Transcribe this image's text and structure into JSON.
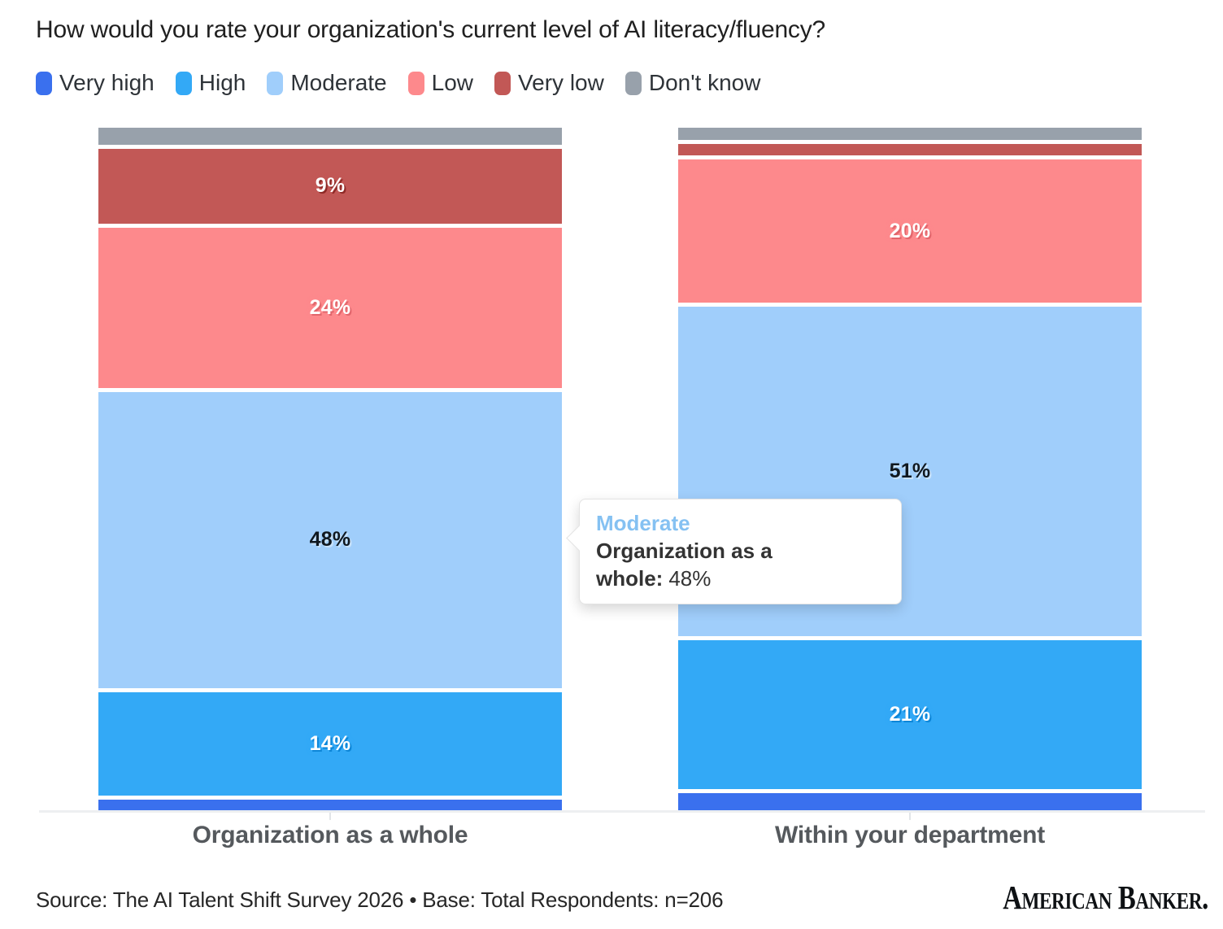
{
  "title": "How would you rate your organization's current level of AI literacy/fluency?",
  "chart_data": {
    "type": "bar",
    "stacked": true,
    "orientation": "vertical",
    "categories": [
      "Organization as a whole",
      "Within your department"
    ],
    "series": [
      {
        "name": "Very high",
        "color": "#3a70ee",
        "values": [
          2,
          3
        ],
        "labels": [
          "",
          ""
        ],
        "label_color": "#ffffff",
        "label_shadow": "#1f4dc0"
      },
      {
        "name": "High",
        "color": "#33a9f6",
        "values": [
          14,
          21
        ],
        "labels": [
          "14%",
          "21%"
        ],
        "label_color": "#ffffff",
        "label_shadow": "#0c86d8"
      },
      {
        "name": "Moderate",
        "color": "#a0cefb",
        "values": [
          48,
          51
        ],
        "labels": [
          "48%",
          "51%"
        ],
        "label_color": "#10181f",
        "label_shadow": "#c8e2fb"
      },
      {
        "name": "Low",
        "color": "#fd898c",
        "values": [
          24,
          20
        ],
        "labels": [
          "24%",
          "20%"
        ],
        "label_color": "#ffffff",
        "label_shadow": "#e2666c"
      },
      {
        "name": "Very low",
        "color": "#c25856",
        "values": [
          9,
          2
        ],
        "labels": [
          "9%",
          ""
        ],
        "label_color": "#ffffff",
        "label_shadow": "#8e2926"
      },
      {
        "name": "Don't know",
        "color": "#98a1ab",
        "values": [
          3,
          2
        ],
        "labels": [
          "",
          ""
        ],
        "label_color": "#ffffff",
        "label_shadow": "#6d7680"
      }
    ],
    "stack_order_note": "bottom-to-top: Very high, High, Moderate, Low, Very low, Don't know",
    "ylim": [
      0,
      100
    ],
    "grid": false,
    "legend_position": "top"
  },
  "tooltip": {
    "title": "Moderate",
    "label": "Organization as a whole:",
    "value": "48%",
    "accent_color": "#85c1f2"
  },
  "footer": {
    "source_line": "Source: The AI Talent Shift Survey 2026 • Base: Total Respondents: n=206",
    "logo_text": "American Banker."
  }
}
